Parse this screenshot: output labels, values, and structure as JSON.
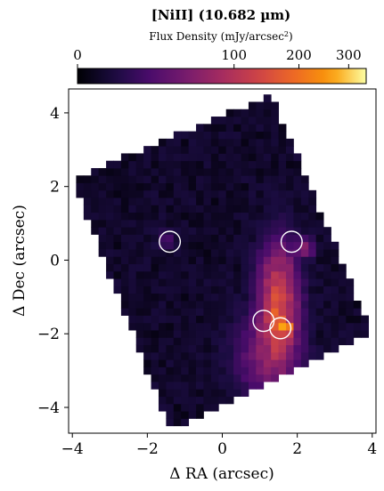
{
  "title": "[NiII] (10.682 µm)",
  "colorbar": {
    "label_prefix": "Flux Density (mJy/arcsec",
    "label_sup": "2",
    "label_suffix": ")",
    "colormap": "inferno",
    "scale": "sqrt",
    "range": [
      0,
      340
    ],
    "ticks": [
      {
        "value": 0,
        "label": "0"
      },
      {
        "value": 100,
        "label": "100"
      },
      {
        "value": 200,
        "label": "200"
      },
      {
        "value": 300,
        "label": "300"
      }
    ]
  },
  "chart_data": {
    "type": "heatmap",
    "title": "[NiII] (10.682 µm)",
    "xlabel": "Δ RA (arcsec)",
    "ylabel": "Δ Dec (arcsec)",
    "xlim": [
      -4.1,
      4.1
    ],
    "ylim": [
      -4.7,
      4.65
    ],
    "xticks": [
      {
        "value": -4,
        "label": "−4"
      },
      {
        "value": -2,
        "label": "−2"
      },
      {
        "value": 0,
        "label": "0"
      },
      {
        "value": 2,
        "label": "2"
      },
      {
        "value": 4,
        "label": "4"
      }
    ],
    "yticks": [
      {
        "value": 4,
        "label": "4"
      },
      {
        "value": 2,
        "label": "2"
      },
      {
        "value": 0,
        "label": "0"
      },
      {
        "value": -2,
        "label": "−2"
      },
      {
        "value": -4,
        "label": "−4"
      }
    ],
    "grid": false,
    "footprint_corners": [
      [
        1.3,
        4.5
      ],
      [
        4.0,
        -2.0
      ],
      [
        -1.4,
        -4.6
      ],
      [
        -4.0,
        2.2
      ]
    ],
    "emission_peaks": [
      {
        "x": 1.5,
        "y": -1.2,
        "peak": 150,
        "sx": 0.3,
        "sy": 0.9
      },
      {
        "x": 1.7,
        "y": -1.85,
        "peak": 320,
        "sx": 0.09,
        "sy": 0.09
      },
      {
        "x": 1.2,
        "y": -2.6,
        "peak": 45,
        "sx": 0.5,
        "sy": 0.7
      },
      {
        "x": 2.2,
        "y": 0.35,
        "peak": 55,
        "sx": 0.15,
        "sy": 0.15
      },
      {
        "x": -1.5,
        "y": 0.55,
        "peak": 20,
        "sx": 0.15,
        "sy": 0.15
      }
    ],
    "background_level": 2,
    "markers": [
      {
        "x": -1.4,
        "y": 0.5,
        "radius": 0.28
      },
      {
        "x": 1.85,
        "y": 0.5,
        "radius": 0.28
      },
      {
        "x": 1.1,
        "y": -1.65,
        "radius": 0.28
      },
      {
        "x": 1.55,
        "y": -1.85,
        "radius": 0.28
      }
    ],
    "marker_color": "#ffffff"
  }
}
